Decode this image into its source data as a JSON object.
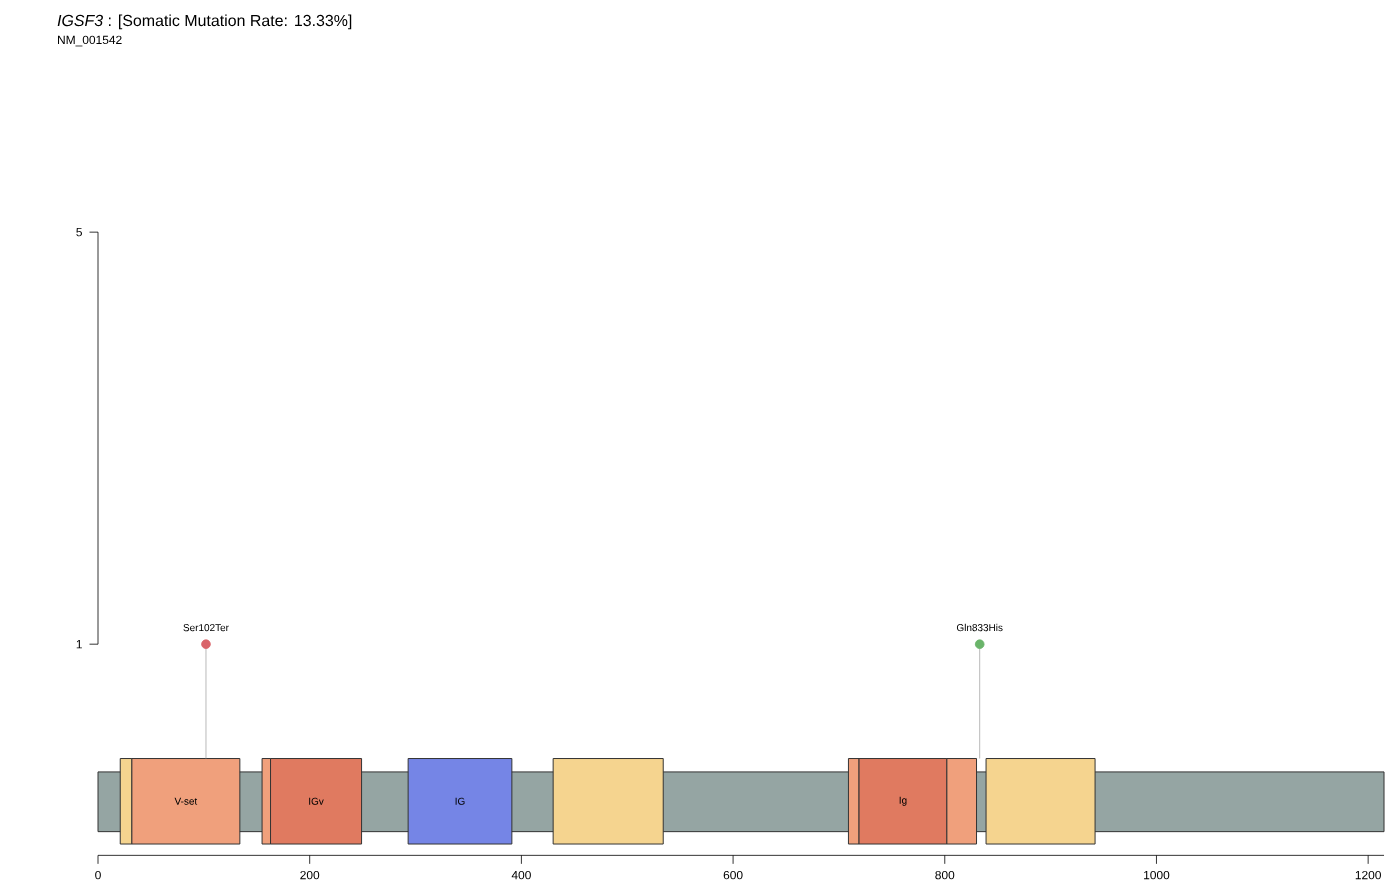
{
  "chart_data": {
    "type": "lollipop",
    "title": "*IGSF3* : [Somatic Mutation Rate: 13.33%]",
    "subtitle": "NM_001542",
    "x": [
      102,
      833
    ],
    "values": [
      1,
      1
    ],
    "colors": [
      "#d9646a",
      "#6ab46a"
    ],
    "value_labels": [
      "Ser102Ter",
      "Gln833His"
    ],
    "xlim": [
      0,
      1215
    ],
    "xticks": [
      0,
      200,
      400,
      600,
      800,
      1000,
      1200
    ],
    "ylim": [
      -1.05,
      5
    ],
    "yticks": [
      1,
      5
    ],
    "bands": [
      {
        "axis": "x",
        "from": 0,
        "to": 1215,
        "color": "#95a5a3"
      },
      {
        "axis": "x",
        "from": 21,
        "to": 32,
        "color": "#f5d48f"
      },
      {
        "axis": "x",
        "from": 32,
        "to": 134,
        "color": "#f0a07c",
        "label": "V-set"
      },
      {
        "axis": "x",
        "from": 155,
        "to": 163,
        "color": "#f0a07c"
      },
      {
        "axis": "x",
        "from": 163,
        "to": 249,
        "color": "#e07a60",
        "label": "IGv"
      },
      {
        "axis": "x",
        "from": 293,
        "to": 391,
        "color": "#7585e6",
        "label": "IG"
      },
      {
        "axis": "x",
        "from": 430,
        "to": 534,
        "color": "#f5d48f"
      },
      {
        "axis": "x",
        "from": 709,
        "to": 719,
        "color": "#f0a07c"
      },
      {
        "axis": "x",
        "from": 719,
        "to": 802,
        "color": "#e07a60",
        "label": "Ig"
      },
      {
        "axis": "x",
        "from": 802,
        "to": 830,
        "color": "#f0a07c"
      },
      {
        "axis": "x",
        "from": 839,
        "to": 942,
        "color": "#f5d48f"
      }
    ]
  }
}
